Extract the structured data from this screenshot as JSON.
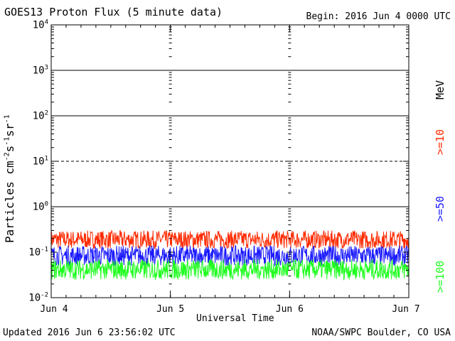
{
  "header": {
    "title": "GOES13 Proton Flux (5 minute data)",
    "begin": "Begin: 2016 Jun 4 0000 UTC"
  },
  "footer": {
    "updated": "Updated 2016 Jun  6 23:56:02 UTC",
    "credit": "NOAA/SWPC Boulder, CO USA"
  },
  "axes": {
    "xlabel": "Universal Time",
    "ylabel_main": "Particles cm",
    "ylabel_s": "s",
    "ylabel_sr": "sr",
    "ylabel_exp_cm": "-2",
    "ylabel_exp_s": "-1",
    "ylabel_exp_sr": "-1",
    "unit_label": "MeV"
  },
  "colors": {
    "ge10": "#ff2a00",
    "ge50": "#1a1aff",
    "ge100": "#1fff1f",
    "axis": "#000000"
  },
  "chart_data": {
    "type": "line",
    "title": "GOES13 Proton Flux (5 minute data)",
    "xlabel": "Universal Time",
    "ylabel": "Particles cm-2s-1sr-1",
    "yscale": "log",
    "ylim": [
      0.01,
      10000
    ],
    "x_categories": [
      "Jun 4",
      "Jun 5",
      "Jun 6",
      "Jun 7"
    ],
    "x_range_days": [
      0,
      3
    ],
    "y_ticks": [
      {
        "base": "10",
        "exp": "-2",
        "value": 0.01
      },
      {
        "base": "10",
        "exp": "-1",
        "value": 0.1
      },
      {
        "base": "10",
        "exp": "0",
        "value": 1
      },
      {
        "base": "10",
        "exp": "1",
        "value": 10
      },
      {
        "base": "10",
        "exp": "2",
        "value": 100
      },
      {
        "base": "10",
        "exp": "3",
        "value": 1000
      },
      {
        "base": "10",
        "exp": "4",
        "value": 10000
      }
    ],
    "reference_lines": [
      {
        "value": 1,
        "style": "solid"
      },
      {
        "value": 10,
        "style": "dashed"
      },
      {
        "value": 100,
        "style": "solid"
      },
      {
        "value": 1000,
        "style": "solid"
      }
    ],
    "series": [
      {
        "name": ">=10",
        "color": "#ff2a00",
        "typical_range": [
          0.12,
          0.3
        ]
      },
      {
        "name": ">=50",
        "color": "#1a1aff",
        "typical_range": [
          0.05,
          0.14
        ]
      },
      {
        "name": ">=100",
        "color": "#1fff1f",
        "typical_range": [
          0.025,
          0.07
        ]
      }
    ],
    "legend_placement": "right-vertical"
  }
}
